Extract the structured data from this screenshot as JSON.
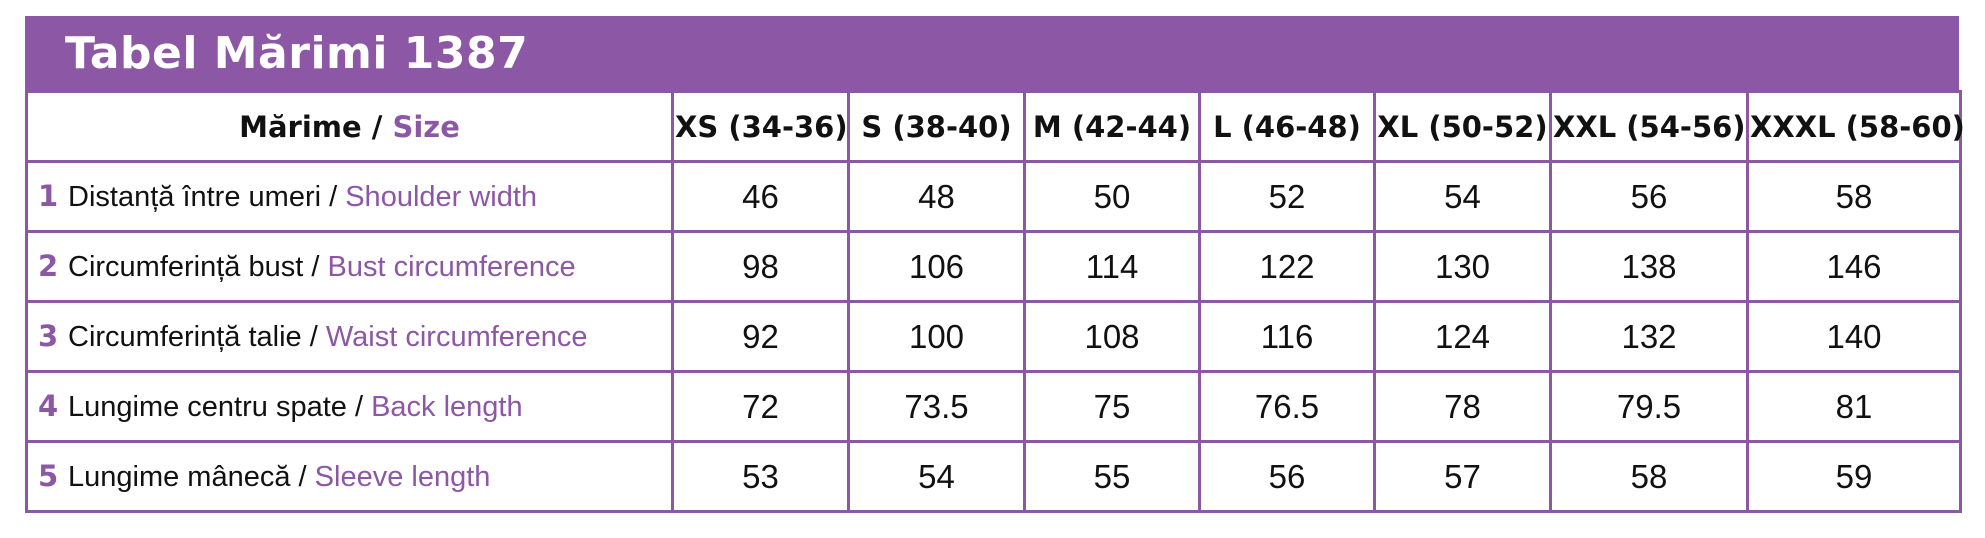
{
  "title": "Tabel Mărimi 1387",
  "header": {
    "label_ro": "Mărime",
    "separator": " / ",
    "label_en": "Size",
    "sizes": [
      "XS (34-36)",
      "S (38-40)",
      "M (42-44)",
      "L (46-48)",
      "XL (50-52)",
      "XXL (54-56)",
      "XXXL (58-60)"
    ]
  },
  "rows": [
    {
      "num": "1",
      "ro": "Distanță între umeri",
      "sep": " / ",
      "en": "Shoulder width",
      "values": [
        "46",
        "48",
        "50",
        "52",
        "54",
        "56",
        "58"
      ]
    },
    {
      "num": "2",
      "ro": "Circumferință bust",
      "sep": " / ",
      "en": "Bust circumference",
      "values": [
        "98",
        "106",
        "114",
        "122",
        "130",
        "138",
        "146"
      ]
    },
    {
      "num": "3",
      "ro": "Circumferință talie",
      "sep": " / ",
      "en": "Waist circumference",
      "values": [
        "92",
        "100",
        "108",
        "116",
        "124",
        "132",
        "140"
      ]
    },
    {
      "num": "4",
      "ro": "Lungime centru spate",
      "sep": " / ",
      "en": "Back length",
      "values": [
        "72",
        "73.5",
        "75",
        "76.5",
        "78",
        "79.5",
        "81"
      ]
    },
    {
      "num": "5",
      "ro": "Lungime mânecă",
      "sep": " / ",
      "en": "Sleeve length",
      "values": [
        "53",
        "54",
        "55",
        "56",
        "57",
        "58",
        "59"
      ]
    }
  ],
  "colors": {
    "accent": "#8c57a5",
    "text": "#111111",
    "background": "#ffffff"
  }
}
